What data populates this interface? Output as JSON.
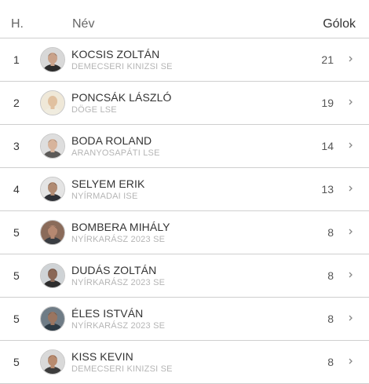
{
  "header": {
    "rank": "H.",
    "name": "Név",
    "goals": "Gólok"
  },
  "rows": [
    {
      "rank": "1",
      "name": "KOCSIS ZOLTÁN",
      "club": "DEMECSERI KINIZSI SE",
      "goals": "21",
      "skin": "#c9a28a",
      "hair": "#2a2422",
      "shirt": "#2b2b2b",
      "bg": "#d8d8d8"
    },
    {
      "rank": "2",
      "name": "PONCSÁK LÁSZLÓ",
      "club": "DÖGE LSE",
      "goals": "19",
      "skin": "#e1c1a0",
      "hair": "#d9c7a8",
      "shirt": "#f0ecdf",
      "bg": "#efe8d8"
    },
    {
      "rank": "3",
      "name": "BODA ROLAND",
      "club": "ARANYOSAPÁTI LSE",
      "goals": "14",
      "skin": "#d7b49c",
      "hair": "#3a2c24",
      "shirt": "#5c5a58",
      "bg": "#dedede"
    },
    {
      "rank": "4",
      "name": "SELYEM ERIK",
      "club": "NYÍRMADAI ISE",
      "goals": "13",
      "skin": "#b08a72",
      "hair": "#1d1a18",
      "shirt": "#2e3036",
      "bg": "#e4e4e4"
    },
    {
      "rank": "5",
      "name": "BOMBERA MIHÁLY",
      "club": "NYÍRKARÁSZ 2023 SE",
      "goals": "8",
      "skin": "#b58871",
      "hair": "#2e2a28",
      "shirt": "#3a3d42",
      "bg": "#8a6b5a"
    },
    {
      "rank": "5",
      "name": "DUDÁS ZOLTÁN",
      "club": "NYÍRKARÁSZ 2023 SE",
      "goals": "8",
      "skin": "#8a6756",
      "hair": "#1a1716",
      "shirt": "#2c2c2c",
      "bg": "#cfd3d6"
    },
    {
      "rank": "5",
      "name": "ÉLES ISTVÁN",
      "club": "NYÍRKARÁSZ 2023 SE",
      "goals": "8",
      "skin": "#9a7560",
      "hair": "#2a2420",
      "shirt": "#2c3a44",
      "bg": "#6f7c86"
    },
    {
      "rank": "5",
      "name": "KISS KEVIN",
      "club": "DEMECSERI KINIZSI SE",
      "goals": "8",
      "skin": "#b88b6f",
      "hair": "#1f1a17",
      "shirt": "#3c3c3c",
      "bg": "#d9d9d9"
    }
  ]
}
